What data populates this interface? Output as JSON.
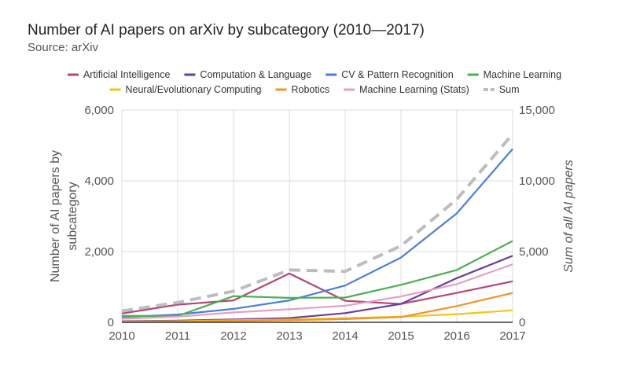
{
  "header": {
    "title": "Number of AI papers on arXiv by subcategory (2010—2017)",
    "subtitle": "Source: arXiv"
  },
  "chart_data": {
    "type": "line",
    "title": "Number of AI papers on arXiv by subcategory (2010—2017)",
    "subtitle": "Source: arXiv",
    "categories": [
      "2010",
      "2011",
      "2012",
      "2013",
      "2014",
      "2015",
      "2016",
      "2017"
    ],
    "ylabel": "Number of AI papers by subcategory",
    "y2label": "Sum of all AI papers",
    "ylim": [
      0,
      6000
    ],
    "y2lim": [
      0,
      15000
    ],
    "yticks": [
      "0",
      "2,000",
      "4,000",
      "6,000"
    ],
    "y2ticks": [
      "0",
      "5,000",
      "10,000",
      "15,000"
    ],
    "legend_position": "top",
    "grid": true,
    "series": [
      {
        "name": "Artificial Intelligence",
        "color": "#b5467a",
        "axis": "left",
        "values": [
          250,
          500,
          620,
          1380,
          610,
          520,
          830,
          1160
        ]
      },
      {
        "name": "Computation & Language",
        "color": "#6a3d9a",
        "axis": "left",
        "values": [
          30,
          50,
          80,
          120,
          260,
          520,
          1250,
          1880
        ]
      },
      {
        "name": "CV & Pattern Recognition",
        "color": "#4d7fd6",
        "axis": "left",
        "values": [
          150,
          220,
          380,
          620,
          1040,
          1830,
          3080,
          4900
        ]
      },
      {
        "name": "Machine Learning",
        "color": "#4caf50",
        "axis": "left",
        "values": [
          180,
          180,
          740,
          690,
          700,
          1060,
          1480,
          2300
        ]
      },
      {
        "name": "Neural/Evolutionary Computing",
        "color": "#f5c518",
        "axis": "left",
        "values": [
          20,
          30,
          60,
          80,
          120,
          160,
          230,
          340
        ]
      },
      {
        "name": "Robotics",
        "color": "#f0932b",
        "axis": "left",
        "values": [
          10,
          20,
          40,
          60,
          90,
          150,
          460,
          830
        ]
      },
      {
        "name": "Machine Learning (Stats)",
        "color": "#e3a0c4",
        "axis": "left",
        "values": [
          100,
          160,
          280,
          370,
          470,
          730,
          1080,
          1640
        ]
      },
      {
        "name": "Sum",
        "color": "#bdbdbd",
        "axis": "right",
        "dashed": true,
        "values": [
          800,
          1400,
          2200,
          3700,
          3600,
          5400,
          8700,
          13300
        ]
      }
    ]
  }
}
